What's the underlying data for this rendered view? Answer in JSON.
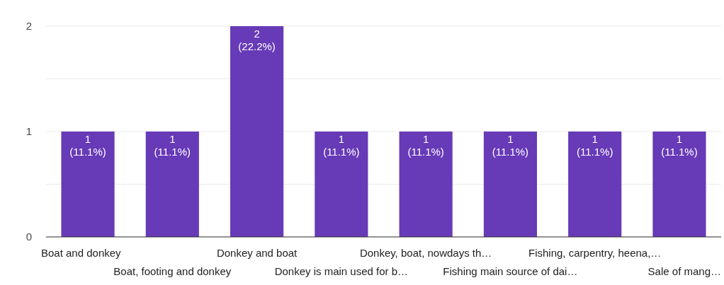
{
  "chart_data": {
    "type": "bar",
    "categories": [
      "Boat and donkey",
      "Boat, footing and donkey",
      "Donkey and boat",
      "Donkey is main used for b…",
      "Donkey, boat, nowdays th…",
      "Fishing main source of dai…",
      "Fishing, carpentry, heena,…",
      "Sale of mang…"
    ],
    "values": [
      1,
      1,
      2,
      1,
      1,
      1,
      1,
      1
    ],
    "color": "#673ab7",
    "value_labels": [
      "1 (11.1%)",
      "1 (11.1%)",
      "2 (22.2%)",
      "1 (11.1%)",
      "1 (11.1%)",
      "1 (11.1%)",
      "1 (11.1%)",
      "1 (11.1%)"
    ],
    "ylim": [
      0,
      2
    ],
    "yticks": [
      0,
      {
        "value": 0.5,
        "label": null
      },
      1,
      {
        "value": 1.5,
        "label": null
      },
      2
    ],
    "grid": true
  }
}
